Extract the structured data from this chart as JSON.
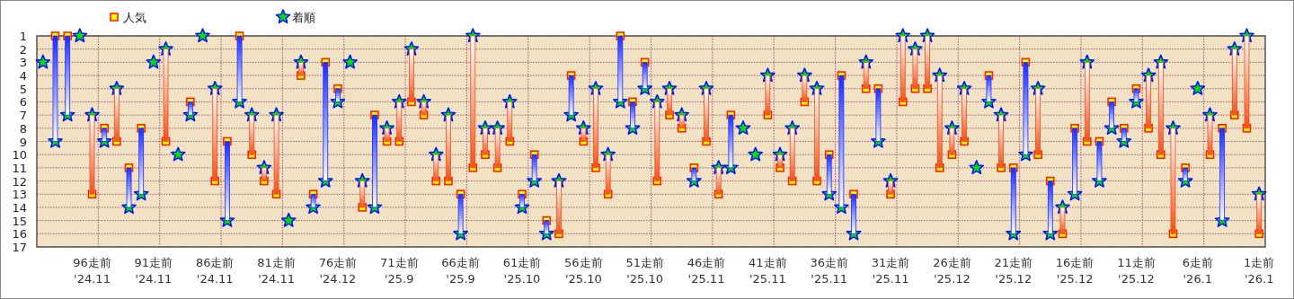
{
  "chart_data": {
    "type": "scatter",
    "categories": [
      null,
      null,
      null,
      null,
      "96走前\n'24.11",
      null,
      null,
      null,
      null,
      "91走前\n'24.11",
      null,
      null,
      null,
      null,
      "86走前\n'24.11",
      null,
      null,
      null,
      null,
      "81走前\n'24.11",
      null,
      null,
      null,
      null,
      "76走前\n'24.12",
      null,
      null,
      null,
      null,
      "71走前\n'25.9",
      null,
      null,
      null,
      null,
      "66走前\n'25.9",
      null,
      null,
      null,
      null,
      "61走前\n'25.10",
      null,
      null,
      null,
      null,
      "56走前\n'25.10",
      null,
      null,
      null,
      null,
      "51走前\n'25.10",
      null,
      null,
      null,
      null,
      "46走前\n'25.11",
      null,
      null,
      null,
      null,
      "41走前\n'25.11",
      null,
      null,
      null,
      null,
      "36走前\n'25.11",
      null,
      null,
      null,
      null,
      "31走前\n'25.11",
      null,
      null,
      null,
      null,
      "26走前\n'25.12",
      null,
      null,
      null,
      null,
      "21走前\n'25.12",
      null,
      null,
      null,
      null,
      "16走前\n'25.12",
      null,
      null,
      null,
      null,
      "11走前\n'25.12",
      null,
      null,
      null,
      null,
      "6走前\n'26.1",
      null,
      null,
      null,
      null,
      "1走前\n'26.1"
    ],
    "series": [
      {
        "type": "bar",
        "base": [
          null,
          1,
          1,
          null,
          13,
          8,
          9,
          11,
          8,
          null,
          9,
          null,
          6,
          null,
          12,
          9,
          1,
          10,
          12,
          13,
          null,
          4,
          13,
          3,
          5,
          null,
          14,
          7,
          9,
          9,
          6,
          7,
          12,
          12,
          13,
          11,
          10,
          11,
          9,
          13,
          10,
          15,
          16,
          4,
          9,
          11,
          13,
          1,
          6,
          3,
          12,
          7,
          8,
          11,
          9,
          13,
          7,
          null,
          null,
          7,
          11,
          12,
          6,
          12,
          10,
          4,
          13,
          5,
          5,
          13,
          6,
          5,
          5,
          11,
          10,
          9,
          null,
          4,
          11,
          11,
          3,
          10,
          12,
          16,
          8,
          9,
          9,
          6,
          8,
          5,
          8,
          10,
          16,
          11,
          null,
          10,
          8,
          7,
          8,
          16
        ],
        "values": [
          null,
          8,
          6,
          null,
          -6,
          1,
          -4,
          3,
          5,
          null,
          -7,
          null,
          1,
          null,
          -7,
          6,
          5,
          -3,
          -1,
          -6,
          null,
          -1,
          1,
          9,
          1,
          null,
          -2,
          7,
          -1,
          -3,
          -4,
          -1,
          -2,
          -5,
          3,
          -10,
          -2,
          -3,
          -3,
          1,
          2,
          1,
          -4,
          3,
          -1,
          -6,
          -3,
          5,
          2,
          2,
          -6,
          -2,
          -1,
          1,
          -4,
          -2,
          4,
          null,
          null,
          -3,
          -1,
          -4,
          -2,
          -7,
          3,
          10,
          3,
          -2,
          4,
          -1,
          -5,
          -3,
          -4,
          -7,
          -2,
          -4,
          null,
          2,
          -4,
          5,
          7,
          -5,
          4,
          -2,
          5,
          -6,
          3,
          2,
          1,
          1,
          -4,
          -7,
          -8,
          1,
          null,
          -3,
          7,
          -5,
          -7,
          -3
        ],
        "colors": [
          null,
          "#1a2cff",
          "#1a2cff",
          null,
          "#f0501a",
          "#1a2cff",
          "#f0501a",
          "#1a2cff",
          "#1a2cff",
          null,
          "#f0501a",
          null,
          "#1a2cff",
          null,
          "#f0501a",
          "#1a2cff",
          "#1a2cff",
          "#f0501a",
          "#f0501a",
          "#f0501a",
          null,
          "#f0501a",
          "#1a2cff",
          "#1a2cff",
          "#1a2cff",
          null,
          "#f0501a",
          "#1a2cff",
          "#f0501a",
          "#f0501a",
          "#f0501a",
          "#f0501a",
          "#f0501a",
          "#f0501a",
          "#1a2cff",
          "#f0501a",
          "#f0501a",
          "#f0501a",
          "#f0501a",
          "#1a2cff",
          "#1a2cff",
          "#1a2cff",
          "#f0501a",
          "#1a2cff",
          "#f0501a",
          "#f0501a",
          "#f0501a",
          "#1a2cff",
          "#1a2cff",
          "#1a2cff",
          "#f0501a",
          "#f0501a",
          "#f0501a",
          "#1a2cff",
          "#f0501a",
          "#f0501a",
          "#1a2cff",
          null,
          null,
          "#f0501a",
          "#f0501a",
          "#f0501a",
          "#f0501a",
          "#f0501a",
          "#1a2cff",
          "#1a2cff",
          "#1a2cff",
          "#f0501a",
          "#1a2cff",
          "#f0501a",
          "#f0501a",
          "#f0501a",
          "#f0501a",
          "#f0501a",
          "#f0501a",
          "#f0501a",
          null,
          "#1a2cff",
          "#f0501a",
          "#1a2cff",
          "#1a2cff",
          "#f0501a",
          "#1a2cff",
          "#f0501a",
          "#1a2cff",
          "#f0501a",
          "#1a2cff",
          "#1a2cff",
          "#1a2cff",
          "#1a2cff",
          "#f0501a",
          "#f0501a",
          "#f0501a",
          "#1a2cff",
          null,
          "#f0501a",
          "#1a2cff",
          "#f0501a",
          "#f0501a",
          "#f0501a"
        ]
      },
      {
        "name": "人気",
        "color": "#ffff00",
        "marker": "square",
        "values": [
          null,
          1,
          1,
          null,
          13,
          8,
          9,
          11,
          8,
          null,
          9,
          null,
          6,
          null,
          12,
          9,
          1,
          10,
          12,
          13,
          null,
          4,
          13,
          3,
          5,
          null,
          14,
          7,
          9,
          9,
          6,
          7,
          12,
          12,
          13,
          11,
          10,
          11,
          9,
          13,
          10,
          15,
          16,
          4,
          9,
          11,
          13,
          1,
          6,
          3,
          12,
          7,
          8,
          11,
          9,
          13,
          7,
          null,
          null,
          7,
          11,
          12,
          6,
          12,
          10,
          4,
          13,
          5,
          5,
          13,
          6,
          5,
          5,
          11,
          10,
          9,
          null,
          4,
          11,
          11,
          3,
          10,
          12,
          16,
          8,
          9,
          9,
          6,
          8,
          5,
          8,
          10,
          16,
          11,
          null,
          10,
          8,
          7,
          8,
          16
        ]
      },
      {
        "name": "着順",
        "color": "#00dd00",
        "marker": "star",
        "values": [
          3,
          9,
          7,
          1,
          7,
          9,
          5,
          14,
          13,
          3,
          2,
          10,
          7,
          1,
          5,
          15,
          6,
          7,
          11,
          7,
          15,
          3,
          14,
          12,
          6,
          3,
          12,
          14,
          8,
          6,
          2,
          6,
          10,
          7,
          16,
          1,
          8,
          8,
          6,
          14,
          12,
          16,
          12,
          7,
          8,
          5,
          10,
          6,
          8,
          5,
          6,
          5,
          7,
          12,
          5,
          11,
          11,
          8,
          10,
          4,
          10,
          8,
          4,
          5,
          13,
          14,
          16,
          3,
          9,
          12,
          1,
          2,
          1,
          4,
          8,
          5,
          11,
          6,
          7,
          16,
          10,
          5,
          16,
          14,
          13,
          3,
          12,
          8,
          9,
          6,
          4,
          3,
          8,
          12,
          5,
          7,
          15,
          2,
          1,
          13
        ]
      }
    ],
    "ylim": [
      17,
      1
    ],
    "yticks": [
      1,
      2,
      3,
      4,
      5,
      6,
      7,
      8,
      9,
      10,
      11,
      12,
      13,
      14,
      15,
      16,
      17
    ],
    "grid": true,
    "legend": "top left"
  }
}
